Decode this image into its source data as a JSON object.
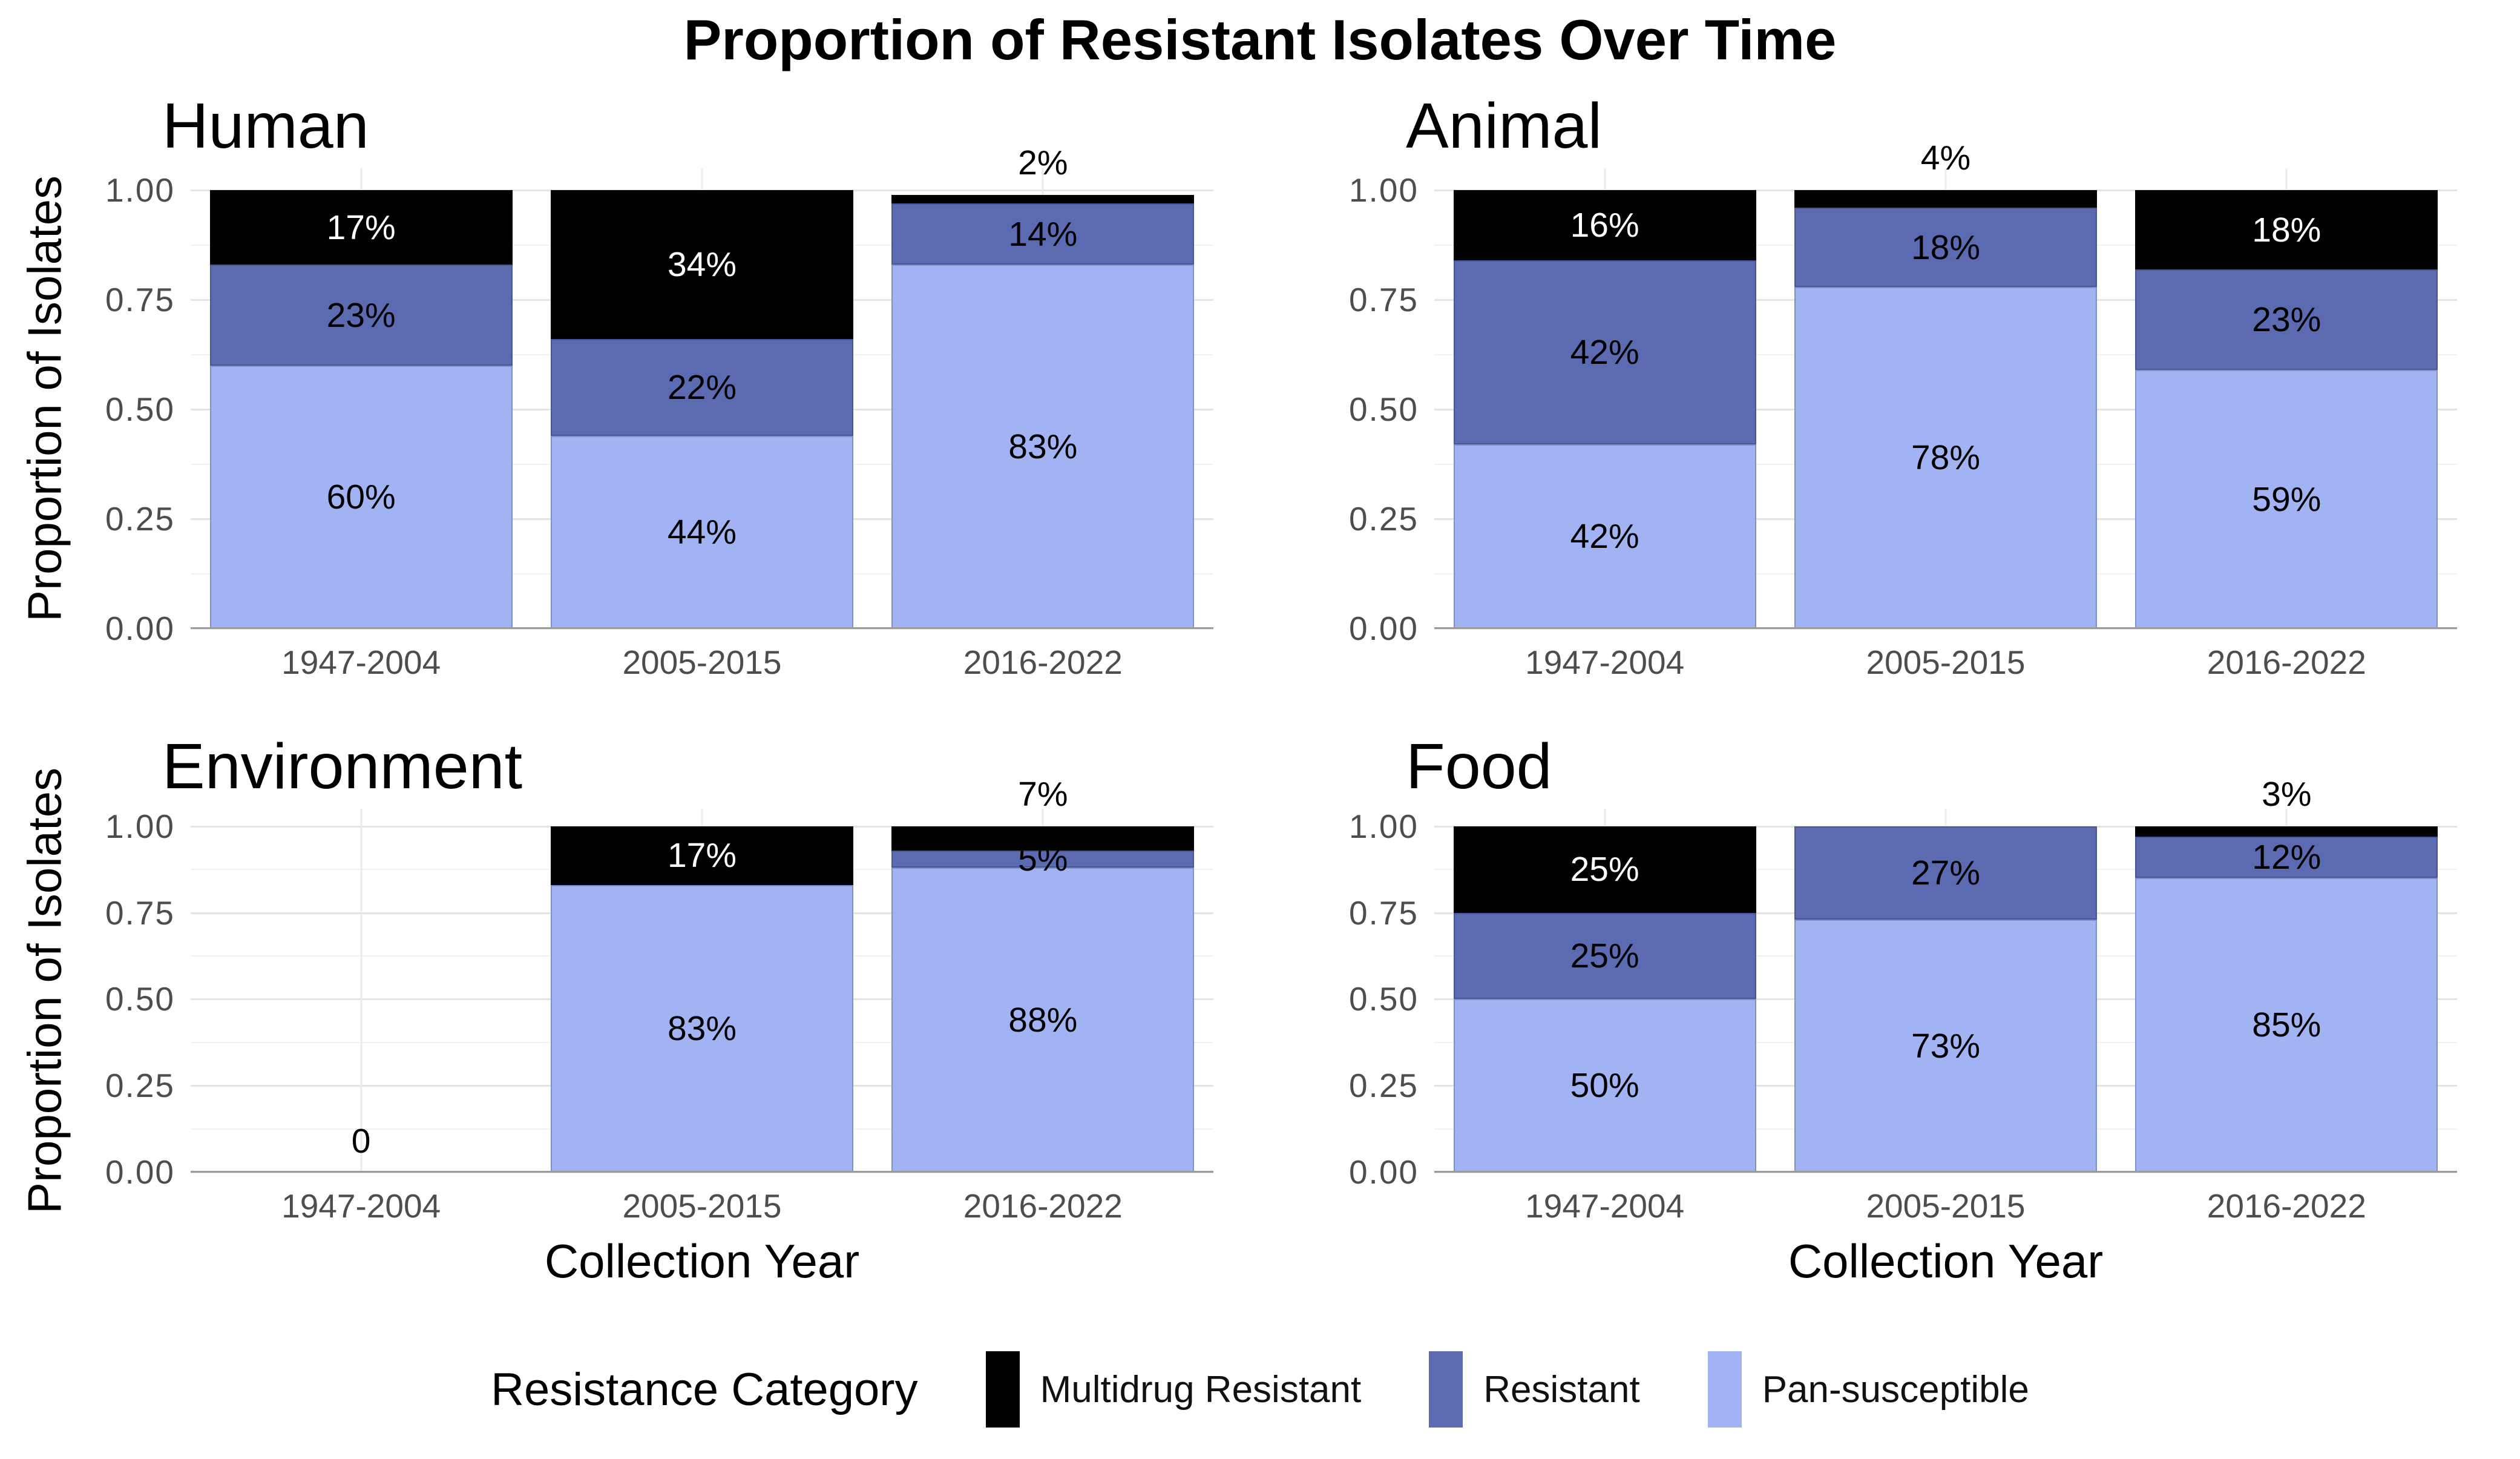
{
  "title": "Proportion of Resistant Isolates Over Time",
  "ylabel": "Proportion of Isolates",
  "xlabel": "Collection Year",
  "categories": [
    "1947-2004",
    "2005-2015",
    "2016-2022"
  ],
  "y_axis": [
    {
      "label": "1.00",
      "value": 1.0
    },
    {
      "label": "0.75",
      "value": 0.75
    },
    {
      "label": "0.50",
      "value": 0.5
    },
    {
      "label": "0.25",
      "value": 0.25
    },
    {
      "label": "0.00",
      "value": 0.0
    }
  ],
  "y_major": [
    0,
    0.25,
    0.5,
    0.75,
    1.0
  ],
  "y_minor": [
    0.125,
    0.375,
    0.625,
    0.875
  ],
  "colors": {
    "mdr": "#000000",
    "res": "#5b6ab1",
    "pan": "#a2b3f3"
  },
  "legend": {
    "title": "Resistance Category",
    "items": [
      {
        "key": "mdr",
        "label": "Multidrug Resistant",
        "color": "#000000"
      },
      {
        "key": "res",
        "label": "Resistant",
        "color": "#5b6ab1"
      },
      {
        "key": "pan",
        "label": "Pan-susceptible",
        "color": "#a2b3f3"
      }
    ]
  },
  "chart_data": {
    "type": "bar",
    "stacked": true,
    "normalized": true,
    "ylim": [
      0,
      1
    ],
    "grid": true,
    "legend_position": "bottom",
    "facets": [
      {
        "name": "Human",
        "bars": [
          {
            "category": "1947-2004",
            "segments": [
              {
                "key": "pan",
                "value": 0.6,
                "label": "60%",
                "label_color": "#000000"
              },
              {
                "key": "res",
                "value": 0.23,
                "label": "23%",
                "label_color": "#000000"
              },
              {
                "key": "mdr",
                "value": 0.17,
                "label": "17%",
                "label_color": "#ffffff"
              }
            ]
          },
          {
            "category": "2005-2015",
            "segments": [
              {
                "key": "pan",
                "value": 0.44,
                "label": "44%",
                "label_color": "#000000"
              },
              {
                "key": "res",
                "value": 0.22,
                "label": "22%",
                "label_color": "#000000"
              },
              {
                "key": "mdr",
                "value": 0.34,
                "label": "34%",
                "label_color": "#ffffff"
              }
            ]
          },
          {
            "category": "2016-2022",
            "above_label": "2%",
            "segments": [
              {
                "key": "pan",
                "value": 0.83,
                "label": "83%",
                "label_color": "#000000"
              },
              {
                "key": "res",
                "value": 0.14,
                "label": "14%",
                "label_color": "#000000"
              },
              {
                "key": "mdr",
                "value": 0.02,
                "label": null
              }
            ]
          }
        ]
      },
      {
        "name": "Animal",
        "bars": [
          {
            "category": "1947-2004",
            "segments": [
              {
                "key": "pan",
                "value": 0.42,
                "label": "42%",
                "label_color": "#000000"
              },
              {
                "key": "res",
                "value": 0.42,
                "label": "42%",
                "label_color": "#000000"
              },
              {
                "key": "mdr",
                "value": 0.16,
                "label": "16%",
                "label_color": "#ffffff"
              }
            ]
          },
          {
            "category": "2005-2015",
            "above_label": "4%",
            "segments": [
              {
                "key": "pan",
                "value": 0.78,
                "label": "78%",
                "label_color": "#000000"
              },
              {
                "key": "res",
                "value": 0.18,
                "label": "18%",
                "label_color": "#000000"
              },
              {
                "key": "mdr",
                "value": 0.04,
                "label": null
              }
            ]
          },
          {
            "category": "2016-2022",
            "segments": [
              {
                "key": "pan",
                "value": 0.59,
                "label": "59%",
                "label_color": "#000000"
              },
              {
                "key": "res",
                "value": 0.23,
                "label": "23%",
                "label_color": "#000000"
              },
              {
                "key": "mdr",
                "value": 0.18,
                "label": "18%",
                "label_color": "#ffffff"
              }
            ]
          }
        ]
      },
      {
        "name": "Environment",
        "bars": [
          {
            "category": "1947-2004",
            "zero_label": "0",
            "segments": []
          },
          {
            "category": "2005-2015",
            "segments": [
              {
                "key": "pan",
                "value": 0.83,
                "label": "83%",
                "label_color": "#000000"
              },
              {
                "key": "mdr",
                "value": 0.17,
                "label": "17%",
                "label_color": "#ffffff"
              }
            ]
          },
          {
            "category": "2016-2022",
            "above_label": "7%",
            "segments": [
              {
                "key": "pan",
                "value": 0.88,
                "label": "88%",
                "label_color": "#000000"
              },
              {
                "key": "res",
                "value": 0.05,
                "label": "5%",
                "label_color": "#000000"
              },
              {
                "key": "mdr",
                "value": 0.07,
                "label": null
              }
            ]
          }
        ]
      },
      {
        "name": "Food",
        "bars": [
          {
            "category": "1947-2004",
            "segments": [
              {
                "key": "pan",
                "value": 0.5,
                "label": "50%",
                "label_color": "#000000"
              },
              {
                "key": "res",
                "value": 0.25,
                "label": "25%",
                "label_color": "#000000"
              },
              {
                "key": "mdr",
                "value": 0.25,
                "label": "25%",
                "label_color": "#ffffff"
              }
            ]
          },
          {
            "category": "2005-2015",
            "segments": [
              {
                "key": "pan",
                "value": 0.73,
                "label": "73%",
                "label_color": "#000000"
              },
              {
                "key": "res",
                "value": 0.27,
                "label": "27%",
                "label_color": "#000000"
              }
            ]
          },
          {
            "category": "2016-2022",
            "above_label": "3%",
            "segments": [
              {
                "key": "pan",
                "value": 0.85,
                "label": "85%",
                "label_color": "#000000"
              },
              {
                "key": "res",
                "value": 0.12,
                "label": "12%",
                "label_color": "#000000"
              },
              {
                "key": "mdr",
                "value": 0.03,
                "label": null
              }
            ]
          }
        ]
      }
    ]
  }
}
